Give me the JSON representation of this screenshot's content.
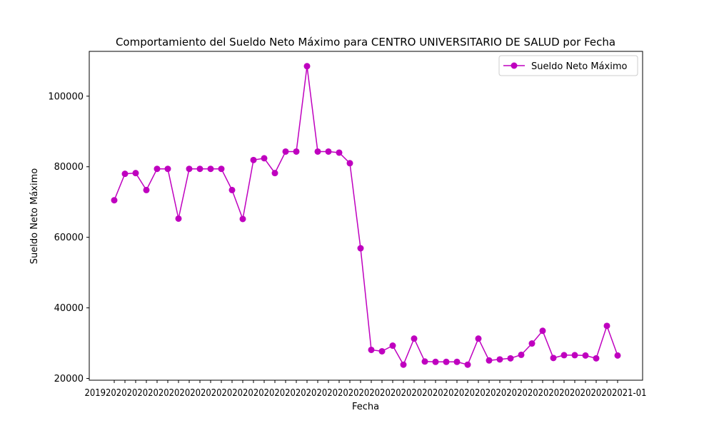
{
  "chart_data": {
    "type": "line",
    "title": "Comportamiento del Sueldo Neto Máximo para CENTRO UNIVERSITARIO DE SALUD por Fecha",
    "xlabel": "Fecha",
    "ylabel": "Sueldo Neto Máximo",
    "ylim": [
      19500,
      112700
    ],
    "yticks": [
      20000,
      40000,
      60000,
      80000,
      100000
    ],
    "ytick_labels": [
      "20000",
      "40000",
      "60000",
      "80000",
      "100000"
    ],
    "x_tick_labels_note": "overlapping date labels rendered as a single string",
    "x_tick_labels": "20192020202020202020202020202020202020202020202020202020202020202020202020202020202020202020202020202021-01",
    "grid": false,
    "legend_position": "top-right",
    "series": [
      {
        "name": "Sueldo Neto Máximo",
        "color": "#bf00bf",
        "marker": "circle",
        "values": [
          70500,
          78000,
          78200,
          73400,
          79400,
          79400,
          65300,
          79400,
          79400,
          79400,
          79400,
          73400,
          65200,
          81900,
          82400,
          78200,
          84300,
          84300,
          108500,
          84300,
          84300,
          84000,
          81000,
          56900,
          28100,
          27700,
          29300,
          23900,
          31300,
          24800,
          24700,
          24700,
          24700,
          23900,
          31300,
          25100,
          25400,
          25700,
          26700,
          29900,
          33500,
          25800,
          26600,
          26600,
          26500,
          25700,
          34900,
          26500
        ]
      }
    ]
  }
}
